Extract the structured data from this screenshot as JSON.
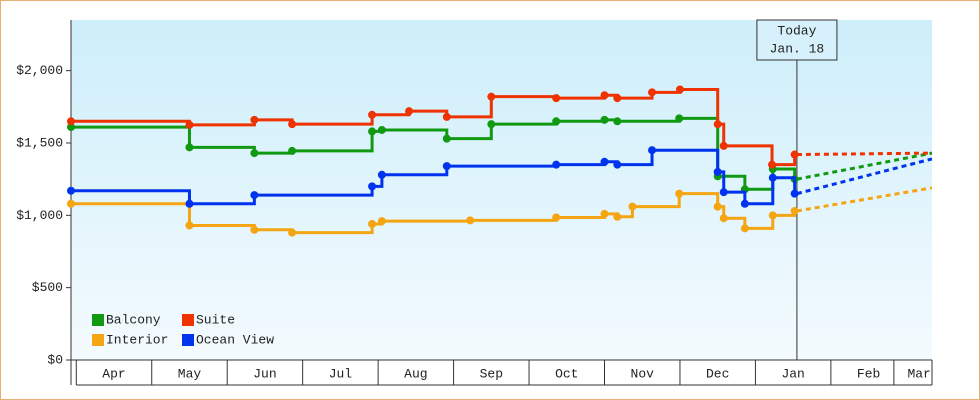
{
  "chart_data": {
    "type": "step-line",
    "ylim": [
      0,
      2350
    ],
    "yticks": [
      {
        "value": 0,
        "label": "$0"
      },
      {
        "value": 500,
        "label": "$500"
      },
      {
        "value": 1000,
        "label": "$1,000"
      },
      {
        "value": 1500,
        "label": "$1,500"
      },
      {
        "value": 2000,
        "label": "$2,000"
      }
    ],
    "xlim": [
      -0.07,
      11.34
    ],
    "xticks": [
      {
        "value": 0.5,
        "label": "Apr"
      },
      {
        "value": 1.5,
        "label": "May"
      },
      {
        "value": 2.5,
        "label": "Jun"
      },
      {
        "value": 3.5,
        "label": "Jul"
      },
      {
        "value": 4.5,
        "label": "Aug"
      },
      {
        "value": 5.5,
        "label": "Sep"
      },
      {
        "value": 6.5,
        "label": "Oct"
      },
      {
        "value": 7.5,
        "label": "Nov"
      },
      {
        "value": 8.5,
        "label": "Dec"
      },
      {
        "value": 9.5,
        "label": "Jan"
      },
      {
        "value": 10.5,
        "label": "Feb"
      },
      {
        "value": 11.17,
        "label": "Mar"
      }
    ],
    "today": {
      "x": 9.55,
      "label": "Today",
      "date": "Jan. 18"
    },
    "forecast_x": 11.34,
    "series": [
      {
        "name": "Balcony",
        "color": "#119911",
        "x": [
          -0.07,
          1.5,
          2.36,
          2.86,
          3.92,
          4.05,
          4.91,
          5.5,
          6.36,
          7.0,
          7.17,
          7.99,
          8.5,
          8.86,
          9.23,
          9.52
        ],
        "values": [
          1610,
          1470,
          1430,
          1445,
          1580,
          1590,
          1530,
          1630,
          1650,
          1660,
          1650,
          1670,
          1270,
          1180,
          1320,
          1250
        ],
        "forecast": 1430
      },
      {
        "name": "Suite",
        "color": "#ee3300",
        "x": [
          -0.07,
          1.5,
          2.36,
          2.86,
          3.92,
          4.41,
          4.91,
          5.5,
          6.36,
          7.0,
          7.17,
          7.63,
          8.0,
          8.5,
          8.58,
          9.22,
          9.52
        ],
        "values": [
          1650,
          1625,
          1660,
          1630,
          1695,
          1720,
          1680,
          1820,
          1810,
          1830,
          1810,
          1850,
          1870,
          1630,
          1480,
          1350,
          1420
        ],
        "forecast": 1430
      },
      {
        "name": "Interior",
        "color": "#f5a511",
        "x": [
          -0.07,
          1.5,
          2.36,
          2.86,
          3.92,
          4.05,
          5.22,
          6.36,
          7.0,
          7.17,
          7.37,
          7.99,
          8.5,
          8.58,
          8.86,
          9.23,
          9.52
        ],
        "values": [
          1080,
          930,
          900,
          880,
          940,
          960,
          965,
          985,
          1010,
          990,
          1060,
          1150,
          1060,
          980,
          910,
          1000,
          1030
        ],
        "forecast": 1190
      },
      {
        "name": "Ocean View",
        "color": "#0033ee",
        "x": [
          -0.07,
          1.5,
          2.36,
          3.92,
          4.05,
          4.91,
          6.36,
          7.0,
          7.17,
          7.63,
          8.5,
          8.58,
          8.86,
          9.23,
          9.52
        ],
        "values": [
          1170,
          1080,
          1140,
          1200,
          1280,
          1340,
          1350,
          1370,
          1350,
          1450,
          1300,
          1160,
          1080,
          1260,
          1150
        ],
        "forecast": 1390
      }
    ]
  }
}
